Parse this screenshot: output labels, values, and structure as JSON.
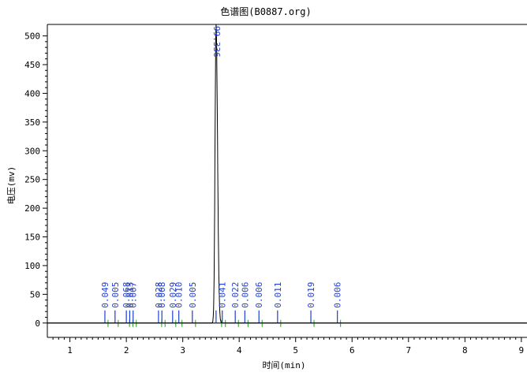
{
  "chart_data": {
    "type": "line",
    "title": "色谱图(B0887.org)",
    "xlabel": "时间(min)",
    "ylabel": "电压(mv)",
    "xlim": [
      0.6,
      9.1
    ],
    "ylim": [
      -25,
      520
    ],
    "x_ticks": [
      1,
      2,
      3,
      4,
      5,
      6,
      7,
      8,
      9
    ],
    "y_ticks": [
      0,
      50,
      100,
      150,
      200,
      250,
      300,
      350,
      400,
      450,
      500
    ],
    "grid": false,
    "baseline": 0,
    "peaks": [
      {
        "rt": 1.62,
        "height": 14,
        "label": "0.049"
      },
      {
        "rt": 1.8,
        "height": 14,
        "label": "0.005"
      },
      {
        "rt": 2.0,
        "height": 14,
        "label": "0.068"
      },
      {
        "rt": 2.06,
        "height": 14,
        "label": "0.013"
      },
      {
        "rt": 2.12,
        "height": 14,
        "label": "0.007"
      },
      {
        "rt": 2.57,
        "height": 14,
        "label": "0.028"
      },
      {
        "rt": 2.63,
        "height": 14,
        "label": "0.008"
      },
      {
        "rt": 2.82,
        "height": 14,
        "label": "0.029"
      },
      {
        "rt": 2.93,
        "height": 14,
        "label": "0.010"
      },
      {
        "rt": 3.17,
        "height": 14,
        "label": "0.005"
      },
      {
        "rt": 3.59,
        "height": 520,
        "label": "99.336"
      },
      {
        "rt": 3.7,
        "height": 14,
        "label": "0.041"
      },
      {
        "rt": 3.93,
        "height": 14,
        "label": "0.022"
      },
      {
        "rt": 4.1,
        "height": 14,
        "label": "0.006"
      },
      {
        "rt": 4.35,
        "height": 14,
        "label": "0.006"
      },
      {
        "rt": 4.68,
        "height": 14,
        "label": "0.011"
      },
      {
        "rt": 5.27,
        "height": 14,
        "label": "0.019"
      },
      {
        "rt": 5.74,
        "height": 14,
        "label": "0.006"
      }
    ]
  }
}
